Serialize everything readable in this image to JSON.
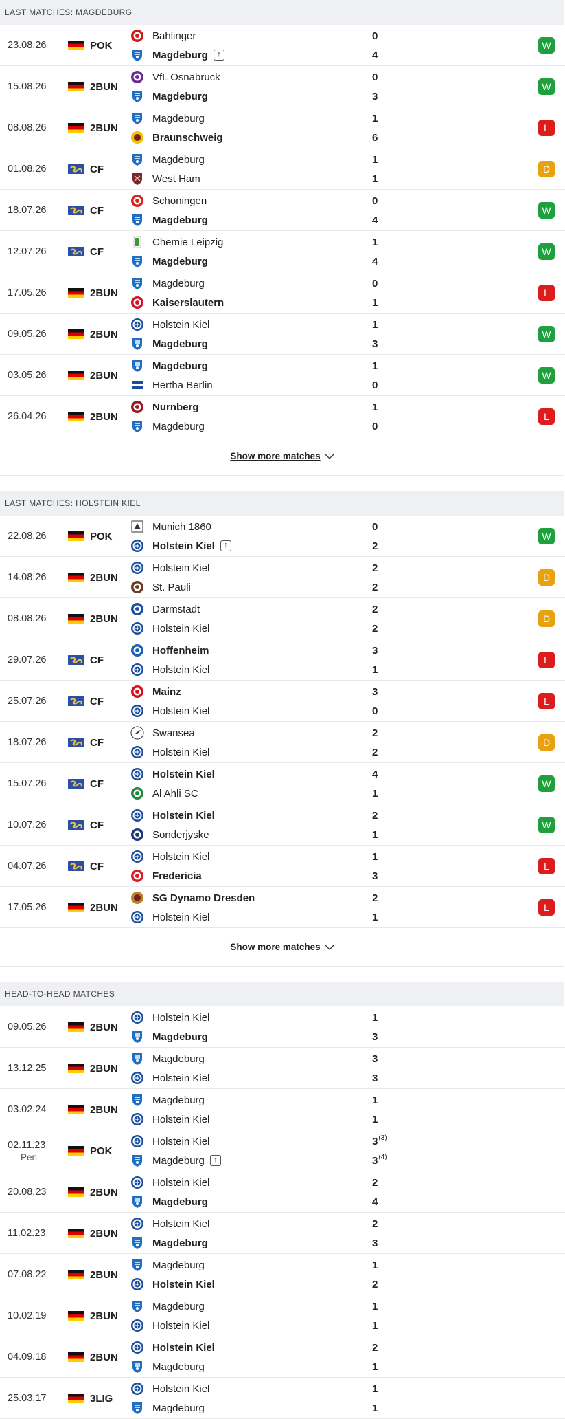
{
  "sections": [
    {
      "title": "Last matches: Magdeburg",
      "show_more": "Show more matches",
      "matches": [
        {
          "date": "23.08.26",
          "sub": "",
          "flag": "de",
          "comp": "POK",
          "home": {
            "name": "Bahlinger",
            "logo": "bahlinger",
            "bold": false,
            "up": false
          },
          "away": {
            "name": "Magdeburg",
            "logo": "magdeburg",
            "bold": true,
            "up": true
          },
          "hs": "0",
          "as": "4",
          "result": "W"
        },
        {
          "date": "15.08.26",
          "sub": "",
          "flag": "de",
          "comp": "2BUN",
          "home": {
            "name": "VfL Osnabruck",
            "logo": "osnabruck",
            "bold": false,
            "up": false
          },
          "away": {
            "name": "Magdeburg",
            "logo": "magdeburg",
            "bold": true,
            "up": false
          },
          "hs": "0",
          "as": "3",
          "result": "W"
        },
        {
          "date": "08.08.26",
          "sub": "",
          "flag": "de",
          "comp": "2BUN",
          "home": {
            "name": "Magdeburg",
            "logo": "magdeburg",
            "bold": false,
            "up": false,
            "hl": true
          },
          "away": {
            "name": "Braunschweig",
            "logo": "braunschweig",
            "bold": true,
            "up": false
          },
          "hs": "1",
          "as": "6",
          "result": "L"
        },
        {
          "date": "01.08.26",
          "sub": "",
          "flag": "world",
          "comp": "CF",
          "home": {
            "name": "Magdeburg",
            "logo": "magdeburg",
            "bold": false,
            "up": false,
            "hl": true
          },
          "away": {
            "name": "West Ham",
            "logo": "westham",
            "bold": false,
            "up": false
          },
          "hs": "1",
          "as": "1",
          "result": "D"
        },
        {
          "date": "18.07.26",
          "sub": "",
          "flag": "world",
          "comp": "CF",
          "home": {
            "name": "Schoningen",
            "logo": "schoningen",
            "bold": false,
            "up": false
          },
          "away": {
            "name": "Magdeburg",
            "logo": "magdeburg",
            "bold": true,
            "up": false
          },
          "hs": "0",
          "as": "4",
          "result": "W"
        },
        {
          "date": "12.07.26",
          "sub": "",
          "flag": "world",
          "comp": "CF",
          "home": {
            "name": "Chemie Leipzig",
            "logo": "chemie",
            "bold": false,
            "up": false
          },
          "away": {
            "name": "Magdeburg",
            "logo": "magdeburg",
            "bold": true,
            "up": false
          },
          "hs": "1",
          "as": "4",
          "result": "W"
        },
        {
          "date": "17.05.26",
          "sub": "",
          "flag": "de",
          "comp": "2BUN",
          "home": {
            "name": "Magdeburg",
            "logo": "magdeburg",
            "bold": false,
            "up": false,
            "hl": true
          },
          "away": {
            "name": "Kaiserslautern",
            "logo": "kaiserslautern",
            "bold": true,
            "up": false
          },
          "hs": "0",
          "as": "1",
          "result": "L"
        },
        {
          "date": "09.05.26",
          "sub": "",
          "flag": "de",
          "comp": "2BUN",
          "home": {
            "name": "Holstein Kiel",
            "logo": "kiel",
            "bold": false,
            "up": false
          },
          "away": {
            "name": "Magdeburg",
            "logo": "magdeburg",
            "bold": true,
            "up": false
          },
          "hs": "1",
          "as": "3",
          "result": "W"
        },
        {
          "date": "03.05.26",
          "sub": "",
          "flag": "de",
          "comp": "2BUN",
          "home": {
            "name": "Magdeburg",
            "logo": "magdeburg",
            "bold": true,
            "up": false
          },
          "away": {
            "name": "Hertha Berlin",
            "logo": "hertha",
            "bold": false,
            "up": false
          },
          "hs": "1",
          "as": "0",
          "result": "W"
        },
        {
          "date": "26.04.26",
          "sub": "",
          "flag": "de",
          "comp": "2BUN",
          "home": {
            "name": "Nurnberg",
            "logo": "nurnberg",
            "bold": true,
            "up": false
          },
          "away": {
            "name": "Magdeburg",
            "logo": "magdeburg",
            "bold": false,
            "up": false,
            "hl": true
          },
          "hs": "1",
          "as": "0",
          "result": "L"
        }
      ]
    },
    {
      "title": "Last matches: Holstein Kiel",
      "show_more": "Show more matches",
      "matches": [
        {
          "date": "22.08.26",
          "sub": "",
          "flag": "de",
          "comp": "POK",
          "home": {
            "name": "Munich 1860",
            "logo": "munich",
            "bold": false,
            "up": false
          },
          "away": {
            "name": "Holstein Kiel",
            "logo": "kiel",
            "bold": true,
            "up": true
          },
          "hs": "0",
          "as": "2",
          "result": "W"
        },
        {
          "date": "14.08.26",
          "sub": "",
          "flag": "de",
          "comp": "2BUN",
          "home": {
            "name": "Holstein Kiel",
            "logo": "kiel",
            "bold": false,
            "up": false,
            "hl": true
          },
          "away": {
            "name": "St. Pauli",
            "logo": "stpauli",
            "bold": false,
            "up": false
          },
          "hs": "2",
          "as": "2",
          "result": "D"
        },
        {
          "date": "08.08.26",
          "sub": "",
          "flag": "de",
          "comp": "2BUN",
          "home": {
            "name": "Darmstadt",
            "logo": "darmstadt",
            "bold": false,
            "up": false
          },
          "away": {
            "name": "Holstein Kiel",
            "logo": "kiel",
            "bold": false,
            "up": false,
            "hl": true
          },
          "hs": "2",
          "as": "2",
          "result": "D"
        },
        {
          "date": "29.07.26",
          "sub": "",
          "flag": "world",
          "comp": "CF",
          "home": {
            "name": "Hoffenheim",
            "logo": "hoffenheim",
            "bold": true,
            "up": false
          },
          "away": {
            "name": "Holstein Kiel",
            "logo": "kiel",
            "bold": false,
            "up": false,
            "hl": true
          },
          "hs": "3",
          "as": "1",
          "result": "L"
        },
        {
          "date": "25.07.26",
          "sub": "",
          "flag": "world",
          "comp": "CF",
          "home": {
            "name": "Mainz",
            "logo": "mainz",
            "bold": true,
            "up": false
          },
          "away": {
            "name": "Holstein Kiel",
            "logo": "kiel",
            "bold": false,
            "up": false,
            "hl": true
          },
          "hs": "3",
          "as": "0",
          "result": "L"
        },
        {
          "date": "18.07.26",
          "sub": "",
          "flag": "world",
          "comp": "CF",
          "home": {
            "name": "Swansea",
            "logo": "swansea",
            "bold": false,
            "up": false
          },
          "away": {
            "name": "Holstein Kiel",
            "logo": "kiel",
            "bold": false,
            "up": false,
            "hl": true
          },
          "hs": "2",
          "as": "2",
          "result": "D"
        },
        {
          "date": "15.07.26",
          "sub": "",
          "flag": "world",
          "comp": "CF",
          "home": {
            "name": "Holstein Kiel",
            "logo": "kiel",
            "bold": true,
            "up": false
          },
          "away": {
            "name": "Al Ahli SC",
            "logo": "alahli",
            "bold": false,
            "up": false
          },
          "hs": "4",
          "as": "1",
          "result": "W"
        },
        {
          "date": "10.07.26",
          "sub": "",
          "flag": "world",
          "comp": "CF",
          "home": {
            "name": "Holstein Kiel",
            "logo": "kiel",
            "bold": true,
            "up": false
          },
          "away": {
            "name": "Sonderjyske",
            "logo": "sonderjyske",
            "bold": false,
            "up": false
          },
          "hs": "2",
          "as": "1",
          "result": "W"
        },
        {
          "date": "04.07.26",
          "sub": "",
          "flag": "world",
          "comp": "CF",
          "home": {
            "name": "Holstein Kiel",
            "logo": "kiel",
            "bold": false,
            "up": false,
            "hl": true
          },
          "away": {
            "name": "Fredericia",
            "logo": "fredericia",
            "bold": true,
            "up": false
          },
          "hs": "1",
          "as": "3",
          "result": "L"
        },
        {
          "date": "17.05.26",
          "sub": "",
          "flag": "de",
          "comp": "2BUN",
          "home": {
            "name": "SG Dynamo Dresden",
            "logo": "dresden",
            "bold": true,
            "up": false
          },
          "away": {
            "name": "Holstein Kiel",
            "logo": "kiel",
            "bold": false,
            "up": false,
            "hl": true
          },
          "hs": "2",
          "as": "1",
          "result": "L"
        }
      ]
    },
    {
      "title": "Head-to-head matches",
      "show_more": "",
      "matches": [
        {
          "date": "09.05.26",
          "sub": "",
          "flag": "de",
          "comp": "2BUN",
          "home": {
            "name": "Holstein Kiel",
            "logo": "kiel",
            "bold": false,
            "up": false
          },
          "away": {
            "name": "Magdeburg",
            "logo": "magdeburg",
            "bold": true,
            "up": false
          },
          "hs": "1",
          "as": "3",
          "result": ""
        },
        {
          "date": "13.12.25",
          "sub": "",
          "flag": "de",
          "comp": "2BUN",
          "home": {
            "name": "Magdeburg",
            "logo": "magdeburg",
            "bold": false,
            "up": false
          },
          "away": {
            "name": "Holstein Kiel",
            "logo": "kiel",
            "bold": false,
            "up": false
          },
          "hs": "3",
          "as": "3",
          "result": ""
        },
        {
          "date": "03.02.24",
          "sub": "",
          "flag": "de",
          "comp": "2BUN",
          "home": {
            "name": "Magdeburg",
            "logo": "magdeburg",
            "bold": false,
            "up": false
          },
          "away": {
            "name": "Holstein Kiel",
            "logo": "kiel",
            "bold": false,
            "up": false
          },
          "hs": "1",
          "as": "1",
          "result": ""
        },
        {
          "date": "02.11.23",
          "sub": "Pen",
          "flag": "de",
          "comp": "POK",
          "home": {
            "name": "Holstein Kiel",
            "logo": "kiel",
            "bold": false,
            "up": false
          },
          "away": {
            "name": "Magdeburg",
            "logo": "magdeburg",
            "bold": false,
            "up": true
          },
          "hs": "3",
          "hs_pen": "(3)",
          "as": "3",
          "as_pen": "(4)",
          "result": ""
        },
        {
          "date": "20.08.23",
          "sub": "",
          "flag": "de",
          "comp": "2BUN",
          "home": {
            "name": "Holstein Kiel",
            "logo": "kiel",
            "bold": false,
            "up": false
          },
          "away": {
            "name": "Magdeburg",
            "logo": "magdeburg",
            "bold": true,
            "up": false
          },
          "hs": "2",
          "as": "4",
          "result": ""
        },
        {
          "date": "11.02.23",
          "sub": "",
          "flag": "de",
          "comp": "2BUN",
          "home": {
            "name": "Holstein Kiel",
            "logo": "kiel",
            "bold": false,
            "up": false
          },
          "away": {
            "name": "Magdeburg",
            "logo": "magdeburg",
            "bold": true,
            "up": false
          },
          "hs": "2",
          "as": "3",
          "result": ""
        },
        {
          "date": "07.08.22",
          "sub": "",
          "flag": "de",
          "comp": "2BUN",
          "home": {
            "name": "Magdeburg",
            "logo": "magdeburg",
            "bold": false,
            "up": false
          },
          "away": {
            "name": "Holstein Kiel",
            "logo": "kiel",
            "bold": true,
            "up": false
          },
          "hs": "1",
          "as": "2",
          "result": ""
        },
        {
          "date": "10.02.19",
          "sub": "",
          "flag": "de",
          "comp": "2BUN",
          "home": {
            "name": "Magdeburg",
            "logo": "magdeburg",
            "bold": false,
            "up": false
          },
          "away": {
            "name": "Holstein Kiel",
            "logo": "kiel",
            "bold": false,
            "up": false
          },
          "hs": "1",
          "as": "1",
          "result": ""
        },
        {
          "date": "04.09.18",
          "sub": "",
          "flag": "de",
          "comp": "2BUN",
          "home": {
            "name": "Holstein Kiel",
            "logo": "kiel",
            "bold": true,
            "up": false
          },
          "away": {
            "name": "Magdeburg",
            "logo": "magdeburg",
            "bold": false,
            "up": false
          },
          "hs": "2",
          "as": "1",
          "result": ""
        },
        {
          "date": "25.03.17",
          "sub": "",
          "flag": "de",
          "comp": "3LIG",
          "home": {
            "name": "Holstein Kiel",
            "logo": "kiel",
            "bold": false,
            "up": false
          },
          "away": {
            "name": "Magdeburg",
            "logo": "magdeburg",
            "bold": false,
            "up": false
          },
          "hs": "1",
          "as": "1",
          "result": ""
        }
      ]
    }
  ],
  "logo_colors": {
    "magdeburg": "#1f6fc5",
    "kiel": "#1b4f9c",
    "bahlinger": "#d11a1a",
    "osnabruck": "#6a2c91",
    "braunschweig": "#f2c200",
    "westham": "#7a263a",
    "schoningen": "#d7261e",
    "chemie": "#3a9a3a",
    "kaiserslautern": "#d3122b",
    "hertha": "#1a4da1",
    "nurnberg": "#9a1b1e",
    "munich": "#2c5aa0",
    "stpauli": "#6b3b24",
    "darmstadt": "#1c4fa0",
    "hoffenheim": "#1961b5",
    "mainz": "#d5121d",
    "swansea": "#333333",
    "alahli": "#1e8a3d",
    "sonderjyske": "#1b3a7a",
    "fredericia": "#d91f2b",
    "dresden": "#b8862a"
  }
}
